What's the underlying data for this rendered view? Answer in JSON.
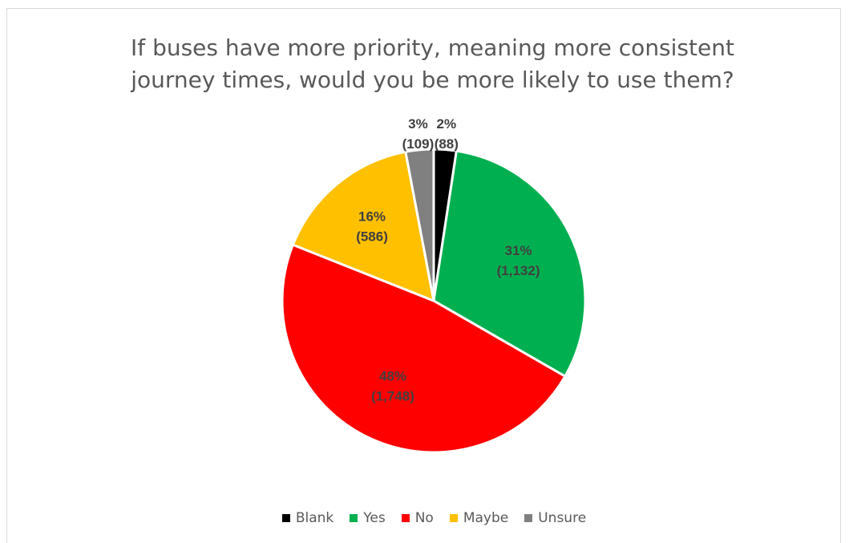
{
  "chart_data": {
    "type": "pie",
    "title": "If buses have more priority, meaning more consistent journey times, would you be more likely to use them?",
    "title_lines": [
      "If buses have more priority, meaning more consistent",
      "journey times, would you be more likely to use them?"
    ],
    "categories": [
      "Blank",
      "Yes",
      "No",
      "Maybe",
      "Unsure"
    ],
    "values": [
      88,
      1132,
      1748,
      586,
      109
    ],
    "percent_labels": [
      "2%",
      "31%",
      "48%",
      "16%",
      "3%"
    ],
    "count_labels": [
      "(88)",
      "(1,132)",
      "(1,748)",
      "(586)",
      "(109)"
    ],
    "colors": [
      "#000000",
      "#00b050",
      "#ff0000",
      "#ffc000",
      "#808080"
    ],
    "label_colors": [
      "#404040",
      "#404040",
      "#404040",
      "#404040",
      "#404040"
    ],
    "legend_position": "bottom"
  }
}
